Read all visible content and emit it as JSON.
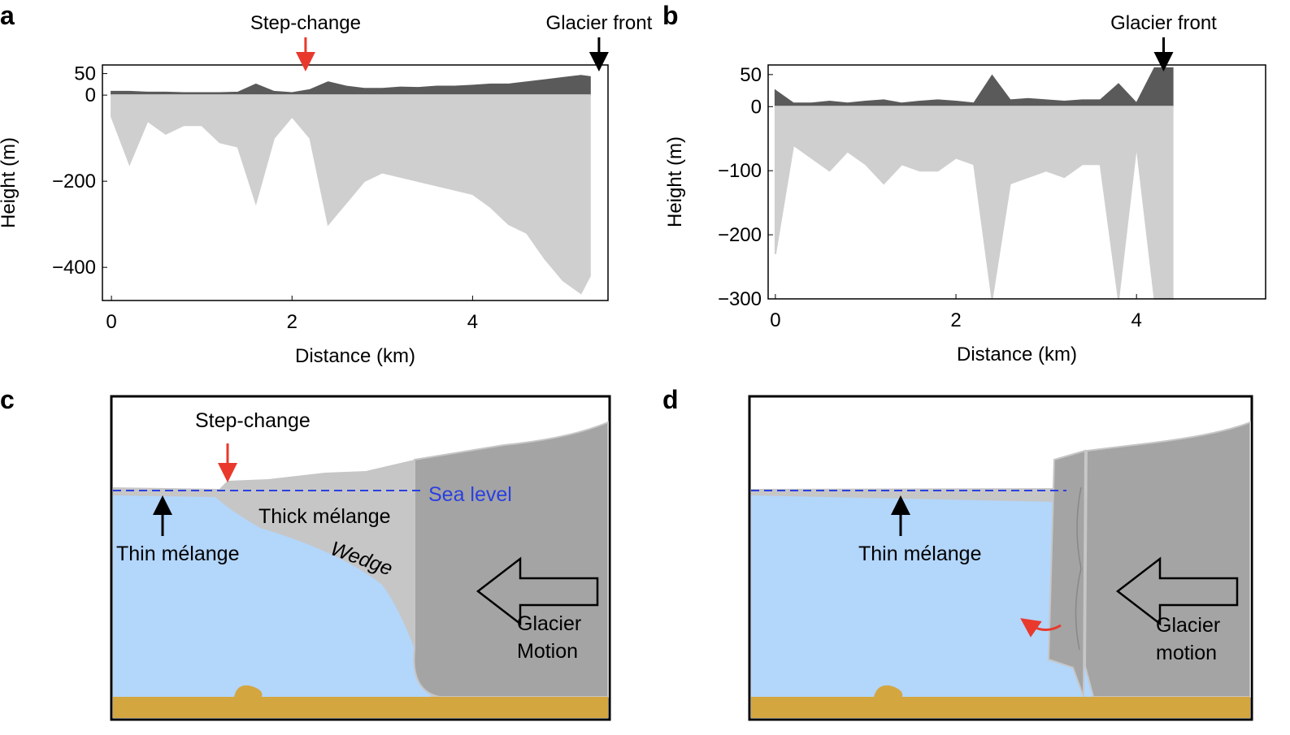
{
  "chart_data": [
    {
      "type": "area",
      "panel": "a",
      "xlabel": "Distance (km)",
      "ylabel": "Height (m)",
      "xlim": [
        -0.1,
        5.5
      ],
      "ylim": [
        -477,
        70
      ],
      "xticks": [
        0,
        2,
        4
      ],
      "yticks": [
        50,
        0,
        {
          "value": -200,
          "label": "−200"
        },
        {
          "value": -400,
          "label": "−400"
        }
      ],
      "x": [
        0,
        0.2,
        0.4,
        0.6,
        0.8,
        1.0,
        1.2,
        1.4,
        1.6,
        1.8,
        2.0,
        2.2,
        2.4,
        2.6,
        2.8,
        3.0,
        3.2,
        3.4,
        3.6,
        3.8,
        4.0,
        4.2,
        4.4,
        4.6,
        4.8,
        5.0,
        5.2,
        5.3
      ],
      "series": [
        {
          "color": "#5a5a5a",
          "values": [
            8,
            8,
            6,
            6,
            5,
            5,
            5,
            6,
            25,
            8,
            5,
            12,
            30,
            20,
            15,
            15,
            18,
            17,
            20,
            20,
            22,
            25,
            25,
            30,
            35,
            40,
            45,
            42
          ]
        },
        {
          "color": "#cfcfcf",
          "values": [
            -50,
            -160,
            -60,
            -90,
            -70,
            -70,
            -110,
            -120,
            -250,
            -100,
            -50,
            -100,
            -300,
            -250,
            -200,
            -180,
            -190,
            -200,
            -210,
            -220,
            -230,
            -260,
            -300,
            -320,
            -380,
            -430,
            -460,
            -420
          ]
        }
      ],
      "annotations": [
        {
          "text": "Step-change",
          "x": 2.15,
          "color": "#e8392c"
        },
        {
          "text": "Glacier front",
          "x": 5.4,
          "color": "#000000"
        }
      ]
    },
    {
      "type": "area",
      "panel": "b",
      "xlabel": "Distance (km)",
      "ylabel": "Height (m)",
      "xlim": [
        -0.08,
        5.43
      ],
      "ylim": [
        -300,
        65
      ],
      "xticks": [
        0,
        2,
        4
      ],
      "yticks": [
        50,
        0,
        {
          "value": -100,
          "label": "−100"
        },
        {
          "value": -200,
          "label": "−200"
        },
        {
          "value": -300,
          "label": "−300"
        }
      ],
      "x": [
        0,
        0.2,
        0.4,
        0.6,
        0.8,
        1.0,
        1.2,
        1.4,
        1.6,
        1.8,
        2.0,
        2.2,
        2.4,
        2.6,
        2.8,
        3.0,
        3.2,
        3.4,
        3.6,
        3.8,
        4.0,
        4.2,
        4.4
      ],
      "series": [
        {
          "color": "#5a5a5a",
          "values": [
            25,
            5,
            5,
            8,
            5,
            8,
            10,
            5,
            8,
            10,
            8,
            5,
            48,
            10,
            12,
            10,
            8,
            10,
            10,
            35,
            5,
            60,
            60
          ]
        },
        {
          "color": "#cfcfcf",
          "values": [
            -230,
            -60,
            -80,
            -100,
            -70,
            -90,
            -120,
            -90,
            -100,
            -100,
            -80,
            -90,
            -300,
            -120,
            -110,
            -100,
            -110,
            -90,
            -90,
            -300,
            -60,
            -300,
            -300
          ]
        }
      ],
      "annotations": [
        {
          "text": "Glacier front",
          "x": 4.3,
          "color": "#000000"
        }
      ]
    }
  ],
  "diagrams": [
    {
      "label": "c",
      "texts": [
        "Step-change",
        "Sea level",
        "Thin mélange",
        "Thick mélange",
        "Wedge",
        "Glacier",
        "Motion"
      ]
    },
    {
      "label": "d",
      "texts": [
        "Thin mélange",
        "Glacier",
        "motion"
      ]
    }
  ]
}
